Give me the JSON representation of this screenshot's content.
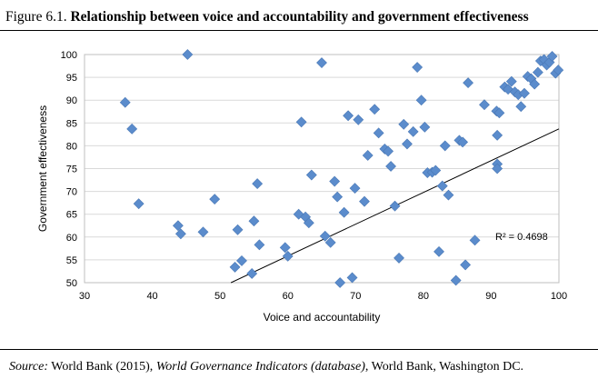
{
  "figure": {
    "label": "Figure 6.1.",
    "title": "Relationship between voice and accountability and government effectiveness",
    "source_label": "Source:",
    "source_text_1": "World Bank (2015),",
    "source_italic": "World Governance Indicators (database)",
    "source_text_2": ", World Bank, Washington DC."
  },
  "colors": {
    "marker": "#5b8ccc",
    "marker_stroke": "#4a78b5",
    "trendline": "#000000",
    "plot_border": "#bfbfbf",
    "gridline": "#d9d9d9"
  },
  "chart_data": {
    "type": "scatter",
    "xlabel": "Voice and accountability",
    "ylabel": "Government effectiveness",
    "xlim": [
      30,
      100
    ],
    "ylim": [
      50,
      100
    ],
    "xticks": [
      30,
      40,
      50,
      60,
      70,
      80,
      90,
      100
    ],
    "yticks": [
      50,
      55,
      60,
      65,
      70,
      75,
      80,
      85,
      90,
      95,
      100
    ],
    "grid": "horizontal",
    "marker": "diamond",
    "annotation": "R² = 0.4698",
    "trendline": {
      "x": [
        51.6,
        100
      ],
      "y": [
        50,
        83.7
      ]
    },
    "points": [
      {
        "x": 36,
        "y": 89.5
      },
      {
        "x": 37,
        "y": 83.7
      },
      {
        "x": 38,
        "y": 67.3
      },
      {
        "x": 43.8,
        "y": 62.5
      },
      {
        "x": 44.2,
        "y": 60.7
      },
      {
        "x": 45.2,
        "y": 100
      },
      {
        "x": 47.5,
        "y": 61.1
      },
      {
        "x": 49.2,
        "y": 68.3
      },
      {
        "x": 52.2,
        "y": 53.4
      },
      {
        "x": 52.6,
        "y": 61.6
      },
      {
        "x": 53.2,
        "y": 54.8
      },
      {
        "x": 54.7,
        "y": 52.0
      },
      {
        "x": 55,
        "y": 63.5
      },
      {
        "x": 55.5,
        "y": 71.7
      },
      {
        "x": 55.8,
        "y": 58.3
      },
      {
        "x": 59.6,
        "y": 57.7
      },
      {
        "x": 60,
        "y": 55.8
      },
      {
        "x": 61.6,
        "y": 65.0
      },
      {
        "x": 62,
        "y": 85.2
      },
      {
        "x": 62.6,
        "y": 64.4
      },
      {
        "x": 63.1,
        "y": 63.1
      },
      {
        "x": 63.5,
        "y": 73.6
      },
      {
        "x": 65,
        "y": 98.2
      },
      {
        "x": 65.5,
        "y": 60.2
      },
      {
        "x": 66.3,
        "y": 58.8
      },
      {
        "x": 66.9,
        "y": 72.2
      },
      {
        "x": 67.3,
        "y": 68.8
      },
      {
        "x": 67.7,
        "y": 50
      },
      {
        "x": 68.3,
        "y": 65.4
      },
      {
        "x": 68.9,
        "y": 86.6
      },
      {
        "x": 69.5,
        "y": 51.1
      },
      {
        "x": 69.9,
        "y": 70.7
      },
      {
        "x": 70.4,
        "y": 85.7
      },
      {
        "x": 71.3,
        "y": 67.8
      },
      {
        "x": 71.8,
        "y": 77.9
      },
      {
        "x": 72.8,
        "y": 88.0
      },
      {
        "x": 73.4,
        "y": 82.8
      },
      {
        "x": 74.3,
        "y": 79.3
      },
      {
        "x": 74.8,
        "y": 78.8
      },
      {
        "x": 75.2,
        "y": 75.5
      },
      {
        "x": 75.8,
        "y": 66.8
      },
      {
        "x": 76.4,
        "y": 55.4
      },
      {
        "x": 77.1,
        "y": 84.7
      },
      {
        "x": 77.6,
        "y": 80.4
      },
      {
        "x": 78.5,
        "y": 83.1
      },
      {
        "x": 79.1,
        "y": 97.2
      },
      {
        "x": 79.7,
        "y": 90.0
      },
      {
        "x": 80.2,
        "y": 84.1
      },
      {
        "x": 80.6,
        "y": 74.1
      },
      {
        "x": 81.3,
        "y": 74.2
      },
      {
        "x": 81.8,
        "y": 74.6
      },
      {
        "x": 82.3,
        "y": 56.8
      },
      {
        "x": 82.8,
        "y": 71.2
      },
      {
        "x": 83.2,
        "y": 80.0
      },
      {
        "x": 83.7,
        "y": 69.2
      },
      {
        "x": 84.8,
        "y": 50.5
      },
      {
        "x": 85.3,
        "y": 81.2
      },
      {
        "x": 85.8,
        "y": 80.8
      },
      {
        "x": 86.2,
        "y": 53.9
      },
      {
        "x": 86.6,
        "y": 93.8
      },
      {
        "x": 87.6,
        "y": 59.3
      },
      {
        "x": 89,
        "y": 89.0
      },
      {
        "x": 90.8,
        "y": 87.6
      },
      {
        "x": 91.2,
        "y": 87.2
      },
      {
        "x": 90.9,
        "y": 82.3
      },
      {
        "x": 90.9,
        "y": 76.0
      },
      {
        "x": 90.9,
        "y": 75.0
      },
      {
        "x": 92,
        "y": 92.9
      },
      {
        "x": 92.5,
        "y": 92.4
      },
      {
        "x": 93,
        "y": 94.1
      },
      {
        "x": 93.5,
        "y": 91.8
      },
      {
        "x": 94,
        "y": 91.2
      },
      {
        "x": 94.4,
        "y": 88.6
      },
      {
        "x": 94.9,
        "y": 91.5
      },
      {
        "x": 95.4,
        "y": 95.2
      },
      {
        "x": 95.9,
        "y": 94.7
      },
      {
        "x": 96.4,
        "y": 93.5
      },
      {
        "x": 96.9,
        "y": 96.1
      },
      {
        "x": 97.3,
        "y": 98.6
      },
      {
        "x": 97.8,
        "y": 98.9
      },
      {
        "x": 98.2,
        "y": 97.7
      },
      {
        "x": 98.6,
        "y": 98.3
      },
      {
        "x": 99,
        "y": 99.6
      },
      {
        "x": 99.5,
        "y": 95.9
      },
      {
        "x": 99.9,
        "y": 96.6
      }
    ]
  }
}
